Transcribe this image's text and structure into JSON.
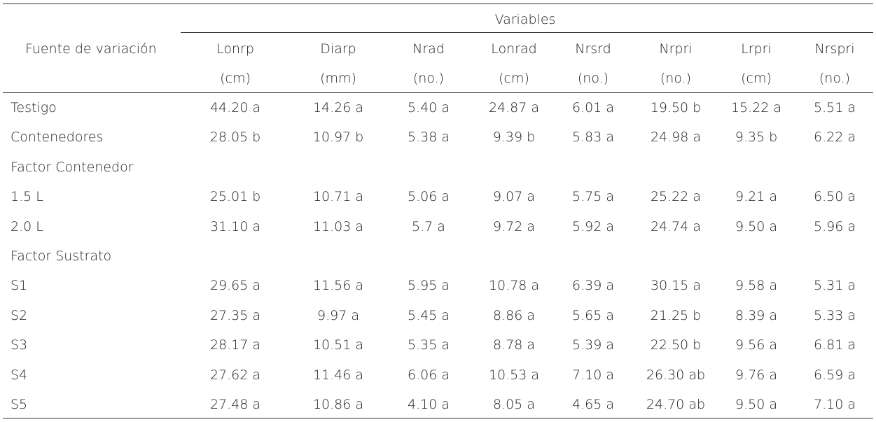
{
  "table": {
    "group_header": "Variables",
    "row_header": "Fuente de variación",
    "columns": [
      {
        "name": "Lonrp",
        "unit": "(cm)"
      },
      {
        "name": "Diarp",
        "unit": "(mm)"
      },
      {
        "name": "Nrad",
        "unit": "(no.)"
      },
      {
        "name": "Lonrad",
        "unit": "(cm)"
      },
      {
        "name": "Nrsrd",
        "unit": "(no.)"
      },
      {
        "name": "Nrpri",
        "unit": "(no.)"
      },
      {
        "name": "Lrpri",
        "unit": "(cm)"
      },
      {
        "name": "Nrspri",
        "unit": "(no.)"
      }
    ],
    "rows": [
      {
        "label": "Testigo",
        "cells": [
          "44.20 a",
          "14.26 a",
          "5.40 a",
          "24.87 a",
          "6.01 a",
          "19.50 b",
          "15.22 a",
          "5.51 a"
        ]
      },
      {
        "label": "Contenedores",
        "cells": [
          "28.05 b",
          "10.97 b",
          "5.38 a",
          "9.39 b",
          "5.83 a",
          "24.98 a",
          "9.35 b",
          "6.22 a"
        ]
      },
      {
        "label": "Factor Contenedor"
      },
      {
        "label": "1.5 L",
        "cells": [
          "25.01 b",
          "10.71 a",
          "5.06 a",
          "9.07 a",
          "5.75 a",
          "25.22 a",
          "9.21 a",
          "6.50 a"
        ]
      },
      {
        "label": "2.0 L",
        "cells": [
          "31.10 a",
          "11.03 a",
          "5.7 a",
          "9.72 a",
          "5.92 a",
          "24.74 a",
          "9.50 a",
          "5.96 a"
        ]
      },
      {
        "label": "Factor Sustrato"
      },
      {
        "label": "S1",
        "cells": [
          "29.65 a",
          "11.56 a",
          "5.95 a",
          "10.78 a",
          "6.39 a",
          "30.15 a",
          "9.58 a",
          "5.31 a"
        ]
      },
      {
        "label": "S2",
        "cells": [
          "27.35 a",
          "9.97 a",
          "5.45 a",
          "8.86 a",
          "5.65 a",
          "21.25 b",
          "8.39 a",
          "5.33 a"
        ]
      },
      {
        "label": "S3",
        "cells": [
          "28.17 a",
          "10.51 a",
          "5.35 a",
          "8.78 a",
          "5.39 a",
          "22.50 b",
          "9.56 a",
          "6.81 a"
        ]
      },
      {
        "label": "S4",
        "cells": [
          "27.62 a",
          "11.46 a",
          "6.06 a",
          "10.53 a",
          "7.10 a",
          "26.30 ab",
          "9.76 a",
          "6.59 a"
        ]
      },
      {
        "label": "S5",
        "cells": [
          "27.48 a",
          "10.86 a",
          "4.10 a",
          "8.05 a",
          "4.65 a",
          "24.70 ab",
          "9.50 a",
          "7.10 a"
        ]
      }
    ]
  }
}
